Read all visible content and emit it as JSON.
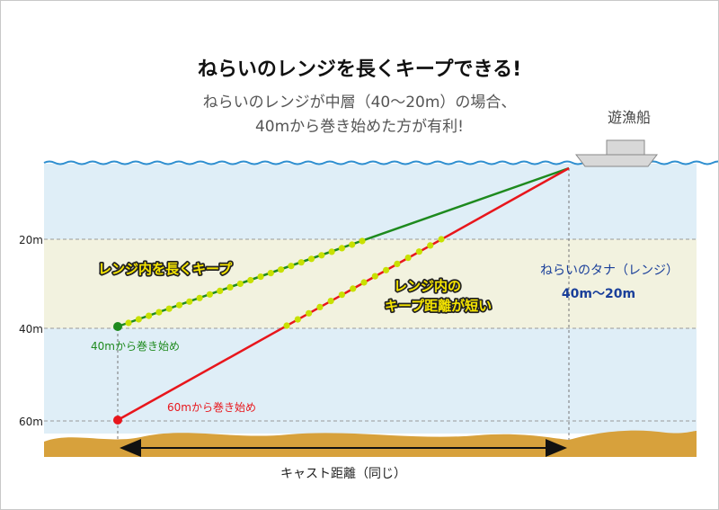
{
  "title": "ねらいのレンジを長くキープできる!",
  "subtitle_line1": "ねらいのレンジが中層（40〜20m）の場合、",
  "subtitle_line2": "40mから巻き始めた方が有利!",
  "boat_label": "遊漁船",
  "depth_labels": {
    "d20": "20m",
    "d40": "40m",
    "d60": "60m"
  },
  "green_line": {
    "start_label": "40mから巻き始め",
    "callout": "レンジ内を長くキープ"
  },
  "red_line": {
    "start_label": "60mから巻き始め",
    "callout_line1": "レンジ内の",
    "callout_line2": "キープ距離が短い"
  },
  "range_label_line1": "ねらいのタナ（レンジ）",
  "range_label_line2": "40m〜20m",
  "cast_label": "キャスト距離（同じ）",
  "colors": {
    "water": "#dfeef7",
    "range_band": "#f2f2df",
    "wave": "#2f8fd0",
    "seabed": "#d7a13c",
    "green_line": "#1e8a1e",
    "red_line": "#e8161c",
    "dots": "#c8e000",
    "range_text": "#1a3f9a"
  }
}
